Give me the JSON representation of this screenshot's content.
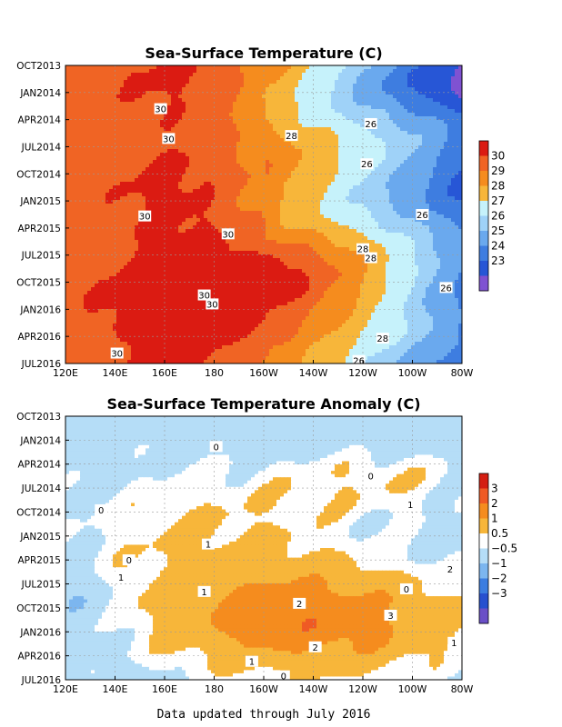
{
  "footer": "Data updated through July 2016",
  "colors": {
    "sst_levels": [
      "#7f52d2",
      "#2756d6",
      "#3e7de0",
      "#6aa9ee",
      "#9fd2f8",
      "#c6f2fb",
      "#f7b63a",
      "#f58c1e",
      "#f06424",
      "#db1b12"
    ],
    "anom_levels": [
      "#6a4fc7",
      "#2750cf",
      "#3b7de0",
      "#7cb6ef",
      "#b5ddf7",
      "#ffffff",
      "#f7b63a",
      "#f58c1e",
      "#ef5a24",
      "#d41e12"
    ]
  },
  "chart_data": [
    {
      "type": "heatmap",
      "title": "Sea-Surface Temperature (C)",
      "xlabel": "",
      "ylabel": "",
      "x_ticks": [
        "120E",
        "140E",
        "160E",
        "180",
        "160W",
        "140W",
        "120W",
        "100W",
        "80W"
      ],
      "y_ticks": [
        "OCT2013",
        "JAN2014",
        "APR2014",
        "JUL2014",
        "OCT2014",
        "JAN2015",
        "APR2015",
        "JUL2015",
        "OCT2015",
        "JAN2016",
        "APR2016",
        "JUL2016"
      ],
      "colorbar": {
        "labels": [
          "30",
          "29",
          "28",
          "27",
          "26",
          "25",
          "24",
          "23"
        ],
        "levels": [
          22.5,
          23,
          24,
          25,
          26,
          27,
          28,
          29,
          30,
          31
        ]
      },
      "contour_labels": [
        "30",
        "30",
        "28",
        "26",
        "26",
        "26",
        "30",
        "30",
        "28",
        "28",
        "26",
        "30",
        "30",
        "28",
        "26",
        "30"
      ],
      "grid": true,
      "description": "Warm pool (>=30C) west of the date line, cold tongue (23-26C) in the eastern Pacific, warm water extending east during 2015-2016."
    },
    {
      "type": "heatmap",
      "title": "Sea-Surface Temperature Anomaly (C)",
      "xlabel": "",
      "ylabel": "",
      "x_ticks": [
        "120E",
        "140E",
        "160E",
        "180",
        "160W",
        "140W",
        "120W",
        "100W",
        "80W"
      ],
      "y_ticks": [
        "OCT2013",
        "JAN2014",
        "APR2014",
        "JUL2014",
        "OCT2014",
        "JAN2015",
        "APR2015",
        "JUL2015",
        "OCT2015",
        "JAN2016",
        "APR2016",
        "JUL2016"
      ],
      "colorbar": {
        "labels": [
          "3",
          "2",
          "1",
          "0.5",
          "−0.5",
          "−1",
          "−2",
          "−3"
        ],
        "levels": [
          -3.5,
          -3,
          -2,
          -1,
          -0.5,
          0.5,
          1,
          2,
          3,
          3.5
        ]
      },
      "contour_labels": [
        "0",
        "0",
        "0",
        "1",
        "1",
        "0",
        "1",
        "0",
        "2",
        "1",
        "2",
        "3",
        "1",
        "2",
        "1",
        "0"
      ],
      "grid": true,
      "description": "Positive anomalies (1-3C) develop across the central and eastern Pacific during 2015 peaking near OCT2015-JAN2016 before decaying by JUL2016."
    }
  ]
}
